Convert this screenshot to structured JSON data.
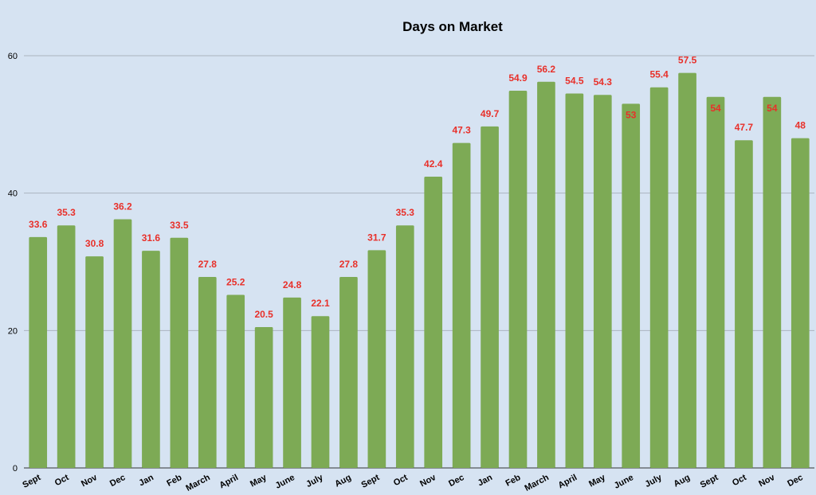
{
  "chart_data": {
    "type": "bar",
    "title": "Days on Market",
    "xlabel": "",
    "ylabel": "",
    "ylim": [
      0,
      60
    ],
    "yticks": [
      0,
      20,
      40,
      60
    ],
    "grid": true,
    "legend": "none",
    "categories": [
      "Sept",
      "Oct",
      "Nov",
      "Dec",
      "Jan",
      "Feb",
      "March",
      "April",
      "May",
      "June",
      "July",
      "Aug",
      "Sept",
      "Oct",
      "Nov",
      "Dec",
      "Jan",
      "Feb",
      "March",
      "April",
      "May",
      "June",
      "July",
      "Aug",
      "Sept",
      "Oct",
      "Nov",
      "Dec"
    ],
    "values": [
      33.6,
      35.3,
      30.8,
      36.2,
      31.6,
      33.5,
      27.8,
      25.2,
      20.5,
      24.8,
      22.1,
      27.8,
      31.7,
      35.3,
      42.4,
      47.3,
      49.7,
      54.9,
      56.2,
      54.5,
      54.3,
      53,
      55.4,
      57.5,
      54,
      47.7,
      54,
      48
    ],
    "labels": [
      "33.6",
      "35.3",
      "30.8",
      "36.2",
      "31.6",
      "33.5",
      "27.8",
      "25.2",
      "20.5",
      "24.8",
      "22.1",
      "27.8",
      "31.7",
      "35.3",
      "42.4",
      "47.3",
      "49.7",
      "54.9",
      "56.2",
      "54.5",
      "54.3",
      "53",
      "55.4",
      "57.5",
      "54",
      "47.7",
      "54",
      "48"
    ],
    "colors": {
      "bar": "#7daa55",
      "label": "#e8302a",
      "grid": "#aab4bf",
      "background": "#d6e3f2"
    }
  }
}
